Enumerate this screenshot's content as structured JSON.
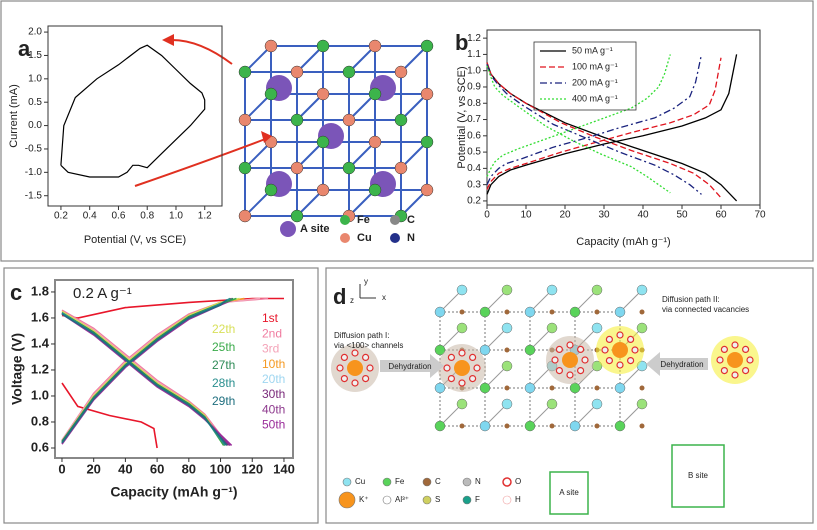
{
  "chart_data": [
    {
      "type": "line",
      "panel_label": "a",
      "ylabel": "Current (mA)",
      "xlabel": "Potential (V, vs SCE)",
      "color": "#000000",
      "x": [
        0.2,
        0.22,
        0.3,
        0.45,
        0.6,
        0.75,
        0.8,
        0.9,
        1.0,
        1.1,
        1.18,
        1.2,
        1.2,
        1.1,
        1.0,
        0.9,
        0.8,
        0.74,
        0.7,
        0.66,
        0.6,
        0.4,
        0.25,
        0.2
      ],
      "values": [
        -0.85,
        0.0,
        0.6,
        1.0,
        1.3,
        1.65,
        1.72,
        1.5,
        1.2,
        0.9,
        0.7,
        0.55,
        0.35,
        0.0,
        -0.3,
        -0.6,
        -0.9,
        -0.85,
        -0.85,
        -1.0,
        -1.1,
        -1.1,
        -1.0,
        -0.85
      ],
      "xlim": [
        0.11,
        1.32
      ],
      "xticks": [
        0.2,
        0.4,
        0.6,
        0.8,
        {
          "value": 1,
          "label": "1.0"
        },
        1.2
      ],
      "ylim": [
        -1.72,
        2.13
      ],
      "yticks": [
        -1.5,
        {
          "value": -1,
          "label": "-1.0"
        },
        -0.5,
        {
          "value": 0,
          "label": "0.0"
        },
        0.5,
        {
          "value": 1,
          "label": "1.0"
        },
        1.5,
        {
          "value": 2,
          "label": "2.0"
        }
      ],
      "crystal_legend": [
        "A site",
        "Fe",
        "Cu",
        "C",
        "N"
      ]
    },
    {
      "type": "line",
      "panel_label": "b",
      "ylabel": "Potential (V, vs SCE)",
      "xlabel": "Capacity (mAh g⁻¹)",
      "legend": "upper left",
      "xlim": [
        0,
        70
      ],
      "xticks": [
        0,
        10,
        20,
        30,
        40,
        50,
        60,
        70
      ],
      "ylim": [
        0.175,
        1.25
      ],
      "yticks": [
        0.2,
        0.3,
        0.4,
        0.5,
        0.6,
        0.7,
        0.8,
        0.9,
        {
          "value": 1,
          "label": "1.0"
        },
        1.1,
        1.2
      ],
      "series": [
        {
          "name": "50 mA g⁻¹",
          "color": "#000000",
          "dash": "solid",
          "x": [
            0,
            1,
            3,
            6,
            10,
            20,
            30,
            40,
            50,
            56,
            60,
            64,
            null,
            0,
            1,
            3,
            6,
            10,
            20,
            30,
            40,
            50,
            56,
            60,
            62,
            64
          ],
          "values": [
            1.05,
            0.98,
            0.92,
            0.86,
            0.8,
            0.68,
            0.59,
            0.51,
            0.43,
            0.37,
            0.3,
            0.2,
            null,
            0.24,
            0.3,
            0.35,
            0.39,
            0.42,
            0.49,
            0.55,
            0.6,
            0.66,
            0.71,
            0.76,
            0.86,
            1.1
          ]
        },
        {
          "name": "100 mA g⁻¹",
          "color": "#e0141e",
          "dash": "dashed",
          "x": [
            0,
            1,
            3,
            6,
            10,
            19,
            28,
            37,
            47,
            53,
            57,
            60,
            null,
            0,
            1,
            3,
            6,
            10,
            19,
            28,
            37,
            47,
            53,
            57,
            58.5,
            60
          ],
          "values": [
            1.05,
            0.98,
            0.92,
            0.86,
            0.8,
            0.68,
            0.59,
            0.51,
            0.43,
            0.37,
            0.3,
            0.22,
            null,
            0.27,
            0.32,
            0.37,
            0.4,
            0.43,
            0.5,
            0.56,
            0.62,
            0.68,
            0.73,
            0.79,
            0.88,
            1.08
          ]
        },
        {
          "name": "200 mA g⁻¹",
          "color": "#1a237e",
          "dash": "dashdot",
          "x": [
            0,
            1,
            3,
            5,
            9,
            17,
            26,
            34,
            43,
            48,
            52,
            55,
            null,
            0,
            1,
            3,
            5,
            9,
            17,
            26,
            34,
            43,
            48,
            52,
            53.5,
            55
          ],
          "values": [
            1.04,
            0.97,
            0.91,
            0.86,
            0.79,
            0.67,
            0.58,
            0.5,
            0.42,
            0.36,
            0.3,
            0.24,
            null,
            0.3,
            0.35,
            0.4,
            0.43,
            0.46,
            0.53,
            0.59,
            0.65,
            0.71,
            0.77,
            0.84,
            0.93,
            1.1
          ]
        },
        {
          "name": "400 mA g⁻¹",
          "color": "#33dd33",
          "dash": "dotted",
          "x": [
            0,
            1,
            2,
            4,
            8,
            15,
            22,
            29,
            37,
            41,
            44,
            47,
            null,
            0,
            1,
            2,
            4,
            8,
            15,
            22,
            29,
            37,
            41,
            44,
            45.5,
            47
          ],
          "values": [
            1.03,
            0.96,
            0.9,
            0.85,
            0.78,
            0.66,
            0.57,
            0.49,
            0.41,
            0.35,
            0.3,
            0.25,
            null,
            0.35,
            0.4,
            0.44,
            0.48,
            0.52,
            0.58,
            0.64,
            0.7,
            0.77,
            0.83,
            0.9,
            0.98,
            1.1
          ]
        }
      ]
    },
    {
      "type": "line",
      "panel_label": "c",
      "title": "0.2 A g⁻¹",
      "ylabel": "Voltage (V)",
      "xlabel": "Capacity (mAh g⁻¹)",
      "xlim": [
        -4.4,
        145.7
      ],
      "xticks": [
        0,
        20,
        40,
        60,
        80,
        100,
        120,
        140
      ],
      "ylim": [
        0.523,
        1.892
      ],
      "yticks": [
        0.6,
        0.8,
        {
          "value": 1,
          "label": "1.0"
        },
        1.2,
        1.4,
        1.6,
        1.8
      ],
      "series": [
        {
          "name": "1st",
          "color": "#e8162a",
          "x": [
            0,
            10,
            30,
            50,
            58,
            60,
            null,
            0,
            10,
            40,
            80,
            120,
            140
          ],
          "values": [
            1.1,
            0.92,
            0.85,
            0.8,
            0.75,
            0.6,
            null,
            1.62,
            1.6,
            1.68,
            1.72,
            1.75,
            1.75
          ]
        },
        {
          "name": "2nd",
          "color": "#f07ca0",
          "x": [
            0,
            20,
            40,
            60,
            80,
            90,
            105,
            null,
            0,
            20,
            40,
            60,
            80,
            100,
            130
          ],
          "values": [
            1.66,
            1.52,
            1.32,
            1.12,
            0.96,
            0.86,
            0.62,
            null,
            0.66,
            1.02,
            1.27,
            1.47,
            1.63,
            1.72,
            1.75
          ]
        },
        {
          "name": "3rd",
          "color": "#f4a3b8",
          "x": [
            0,
            20,
            40,
            60,
            80,
            90,
            104,
            null,
            0,
            20,
            40,
            60,
            80,
            100,
            125
          ],
          "values": [
            1.65,
            1.51,
            1.31,
            1.11,
            0.95,
            0.85,
            0.62,
            null,
            0.66,
            1.01,
            1.26,
            1.46,
            1.62,
            1.72,
            1.75
          ]
        },
        {
          "name": "10th",
          "color": "#f59a23",
          "x": [
            0,
            20,
            40,
            60,
            80,
            90,
            103,
            null,
            0,
            20,
            40,
            60,
            80,
            100,
            115
          ],
          "values": [
            1.65,
            1.5,
            1.3,
            1.1,
            0.95,
            0.85,
            0.62,
            null,
            0.65,
            1.0,
            1.25,
            1.45,
            1.62,
            1.72,
            1.75
          ]
        },
        {
          "name": "20th",
          "color": "#9fd6f0",
          "x": [
            0,
            20,
            40,
            60,
            80,
            90,
            102,
            null,
            0,
            20,
            40,
            60,
            80,
            100,
            110
          ],
          "values": [
            1.64,
            1.49,
            1.29,
            1.09,
            0.94,
            0.84,
            0.62,
            null,
            0.65,
            0.99,
            1.24,
            1.44,
            1.61,
            1.71,
            1.75
          ]
        },
        {
          "name": "30th",
          "color": "#7a2a7a",
          "x": [
            0,
            20,
            40,
            60,
            80,
            90,
            105,
            null,
            0,
            20,
            40,
            60,
            80,
            100,
            107
          ],
          "values": [
            1.64,
            1.48,
            1.28,
            1.08,
            0.93,
            0.83,
            0.62,
            null,
            0.64,
            0.98,
            1.23,
            1.43,
            1.6,
            1.71,
            1.75
          ]
        },
        {
          "name": "40th",
          "color": "#8e3a8e",
          "x": [
            0,
            20,
            40,
            60,
            80,
            90,
            106,
            null,
            0,
            20,
            40,
            60,
            80,
            100,
            106
          ],
          "values": [
            1.63,
            1.48,
            1.28,
            1.08,
            0.93,
            0.83,
            0.62,
            null,
            0.64,
            0.98,
            1.23,
            1.43,
            1.6,
            1.7,
            1.74
          ]
        },
        {
          "name": "50th",
          "color": "#9a2c9a",
          "x": [
            0,
            20,
            40,
            60,
            80,
            90,
            107,
            null,
            0,
            20,
            40,
            60,
            80,
            100,
            108
          ],
          "values": [
            1.63,
            1.47,
            1.27,
            1.07,
            0.92,
            0.82,
            0.62,
            null,
            0.63,
            0.97,
            1.22,
            1.42,
            1.59,
            1.7,
            1.74
          ]
        },
        {
          "name": "22th",
          "color": "#d8e05a",
          "x": [
            0,
            20,
            40,
            60,
            80,
            90,
            102,
            null,
            0,
            20,
            40,
            60,
            80,
            100,
            112
          ],
          "values": [
            1.65,
            1.5,
            1.3,
            1.1,
            0.95,
            0.85,
            0.62,
            null,
            0.65,
            1.0,
            1.25,
            1.45,
            1.62,
            1.72,
            1.75
          ]
        },
        {
          "name": "25th",
          "color": "#3aaa4a",
          "x": [
            0,
            20,
            40,
            60,
            80,
            90,
            102,
            null,
            0,
            20,
            40,
            60,
            80,
            100,
            110
          ],
          "values": [
            1.64,
            1.49,
            1.29,
            1.09,
            0.94,
            0.84,
            0.62,
            null,
            0.65,
            0.99,
            1.24,
            1.44,
            1.61,
            1.71,
            1.75
          ]
        },
        {
          "name": "27th",
          "color": "#2e8b57",
          "x": [
            0,
            20,
            40,
            60,
            80,
            90,
            103,
            null,
            0,
            20,
            40,
            60,
            80,
            100,
            108
          ],
          "values": [
            1.64,
            1.49,
            1.29,
            1.09,
            0.94,
            0.84,
            0.62,
            null,
            0.65,
            0.99,
            1.24,
            1.44,
            1.61,
            1.71,
            1.75
          ]
        },
        {
          "name": "28th",
          "color": "#2a8f8f",
          "x": [
            0,
            20,
            40,
            60,
            80,
            90,
            103,
            null,
            0,
            20,
            40,
            60,
            80,
            100,
            106
          ],
          "values": [
            1.64,
            1.48,
            1.28,
            1.08,
            0.93,
            0.83,
            0.62,
            null,
            0.64,
            0.98,
            1.23,
            1.43,
            1.6,
            1.71,
            1.75
          ]
        },
        {
          "name": "29th",
          "color": "#1f6f7f",
          "x": [
            0,
            20,
            40,
            60,
            80,
            90,
            104,
            null,
            0,
            20,
            40,
            60,
            80,
            100,
            104
          ],
          "values": [
            1.63,
            1.48,
            1.28,
            1.08,
            0.93,
            0.83,
            0.62,
            null,
            0.64,
            0.98,
            1.23,
            1.43,
            1.6,
            1.7,
            1.74
          ]
        }
      ]
    }
  ],
  "diagram": {
    "panel_label": "d",
    "axes": [
      "y",
      "z",
      "x"
    ],
    "path_1": [
      "Diffusion path I:",
      "via <100> channels"
    ],
    "path_2": [
      "Diffusion path II:",
      "via connected vacancies"
    ],
    "steps": [
      "Dehydration",
      "Dehydration"
    ],
    "legend": [
      "Cu",
      "Fe",
      "C",
      "N",
      "O",
      "K⁺",
      "Al³⁺",
      "S",
      "F",
      "H"
    ],
    "sites": [
      "A site",
      "B site"
    ]
  }
}
